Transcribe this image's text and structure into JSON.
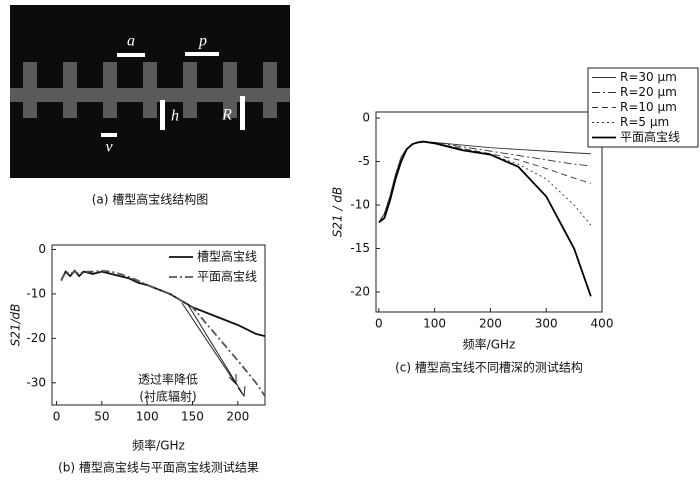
{
  "figure_a": {
    "caption": "(a) 槽型高宝线结构图",
    "labels": [
      "a",
      "p",
      "h",
      "R",
      "v"
    ]
  },
  "chart_data": [
    {
      "type": "line",
      "caption": "(b) 槽型高宝线与平面高宝线测试结果",
      "xlabel": "频率/GHz",
      "ylabel": "S21/dB",
      "x": [
        5,
        10,
        15,
        20,
        25,
        30,
        40,
        50,
        60,
        70,
        80,
        90,
        100,
        125,
        150,
        175,
        200,
        220,
        230
      ],
      "series": [
        {
          "name": "槽型高宝线",
          "color": "#111111",
          "style": "solid",
          "width": "bold",
          "values": [
            -7,
            -5,
            -6,
            -4.8,
            -6,
            -5,
            -5.5,
            -5,
            -5.5,
            -6,
            -6.5,
            -7.5,
            -8,
            -10,
            -13,
            -15,
            -17,
            -19,
            -19.5
          ]
        },
        {
          "name": "平面高宝线",
          "color": "#555555",
          "style": "dashdot",
          "width": "bold",
          "values": [
            -7,
            -5,
            -5.5,
            -5,
            -5.5,
            -5,
            -5,
            -4.8,
            -5,
            -5.5,
            -6.2,
            -7,
            -8,
            -10,
            -13,
            -19,
            -25,
            -30,
            -33
          ]
        }
      ],
      "xlim": [
        -5,
        230
      ],
      "ylim": [
        -35,
        1
      ],
      "xticks": [
        0,
        50,
        100,
        150,
        200
      ],
      "yticks": [
        0,
        -10,
        -20,
        -30
      ],
      "legend": "upper right",
      "legend_frame": false,
      "annotation": [
        "透过率降低",
        "(衬底辐射)"
      ]
    },
    {
      "type": "line",
      "caption": "(c) 槽型高宝线不同槽深的测试结构",
      "xlabel": "频率/GHz",
      "ylabel": "S21 / dB",
      "x": [
        0,
        10,
        20,
        30,
        40,
        50,
        60,
        70,
        80,
        100,
        150,
        200,
        250,
        300,
        350,
        380
      ],
      "series": [
        {
          "name": "R=30 μm",
          "color": "#333333",
          "style": "solid",
          "width": "thin",
          "values": [
            -12,
            -11,
            -9,
            -6.5,
            -4.5,
            -3.5,
            -3,
            -2.8,
            -2.7,
            -2.8,
            -3.1,
            -3.4,
            -3.6,
            -3.8,
            -4,
            -4.1
          ]
        },
        {
          "name": "R=20 μm",
          "color": "#333333",
          "style": "dashdot",
          "width": "thin",
          "values": [
            -12,
            -11,
            -9,
            -6.5,
            -4.5,
            -3.5,
            -3,
            -2.8,
            -2.7,
            -2.8,
            -3.3,
            -3.8,
            -4.3,
            -4.8,
            -5.3,
            -5.5
          ]
        },
        {
          "name": "R=10 μm",
          "color": "#333333",
          "style": "dashed",
          "width": "thin",
          "values": [
            -12,
            -11,
            -9,
            -6.5,
            -4.5,
            -3.5,
            -3,
            -2.8,
            -2.7,
            -2.9,
            -3.5,
            -4.1,
            -4.8,
            -5.8,
            -6.9,
            -7.5
          ]
        },
        {
          "name": "R=5 μm",
          "color": "#333333",
          "style": "dotted",
          "width": "thin",
          "values": [
            -12,
            -11,
            -9,
            -6.5,
            -4.5,
            -3.5,
            -3,
            -2.8,
            -2.7,
            -2.9,
            -3.5,
            -4.2,
            -5.3,
            -7,
            -10,
            -12.3
          ]
        },
        {
          "name": "平面高宝线",
          "color": "#000000",
          "style": "solid",
          "width": "bold",
          "values": [
            -12,
            -11.5,
            -9.5,
            -7,
            -5,
            -3.6,
            -3,
            -2.8,
            -2.7,
            -2.9,
            -3.7,
            -4.2,
            -5.6,
            -9,
            -15,
            -20.5
          ]
        }
      ],
      "xlim": [
        -5,
        400
      ],
      "ylim": [
        -22.3,
        0.7
      ],
      "xticks": [
        0,
        100,
        200,
        300,
        400
      ],
      "yticks": [
        0,
        -5,
        -10,
        -15,
        -20
      ],
      "legend": "outside upper right",
      "legend_frame": true
    }
  ]
}
